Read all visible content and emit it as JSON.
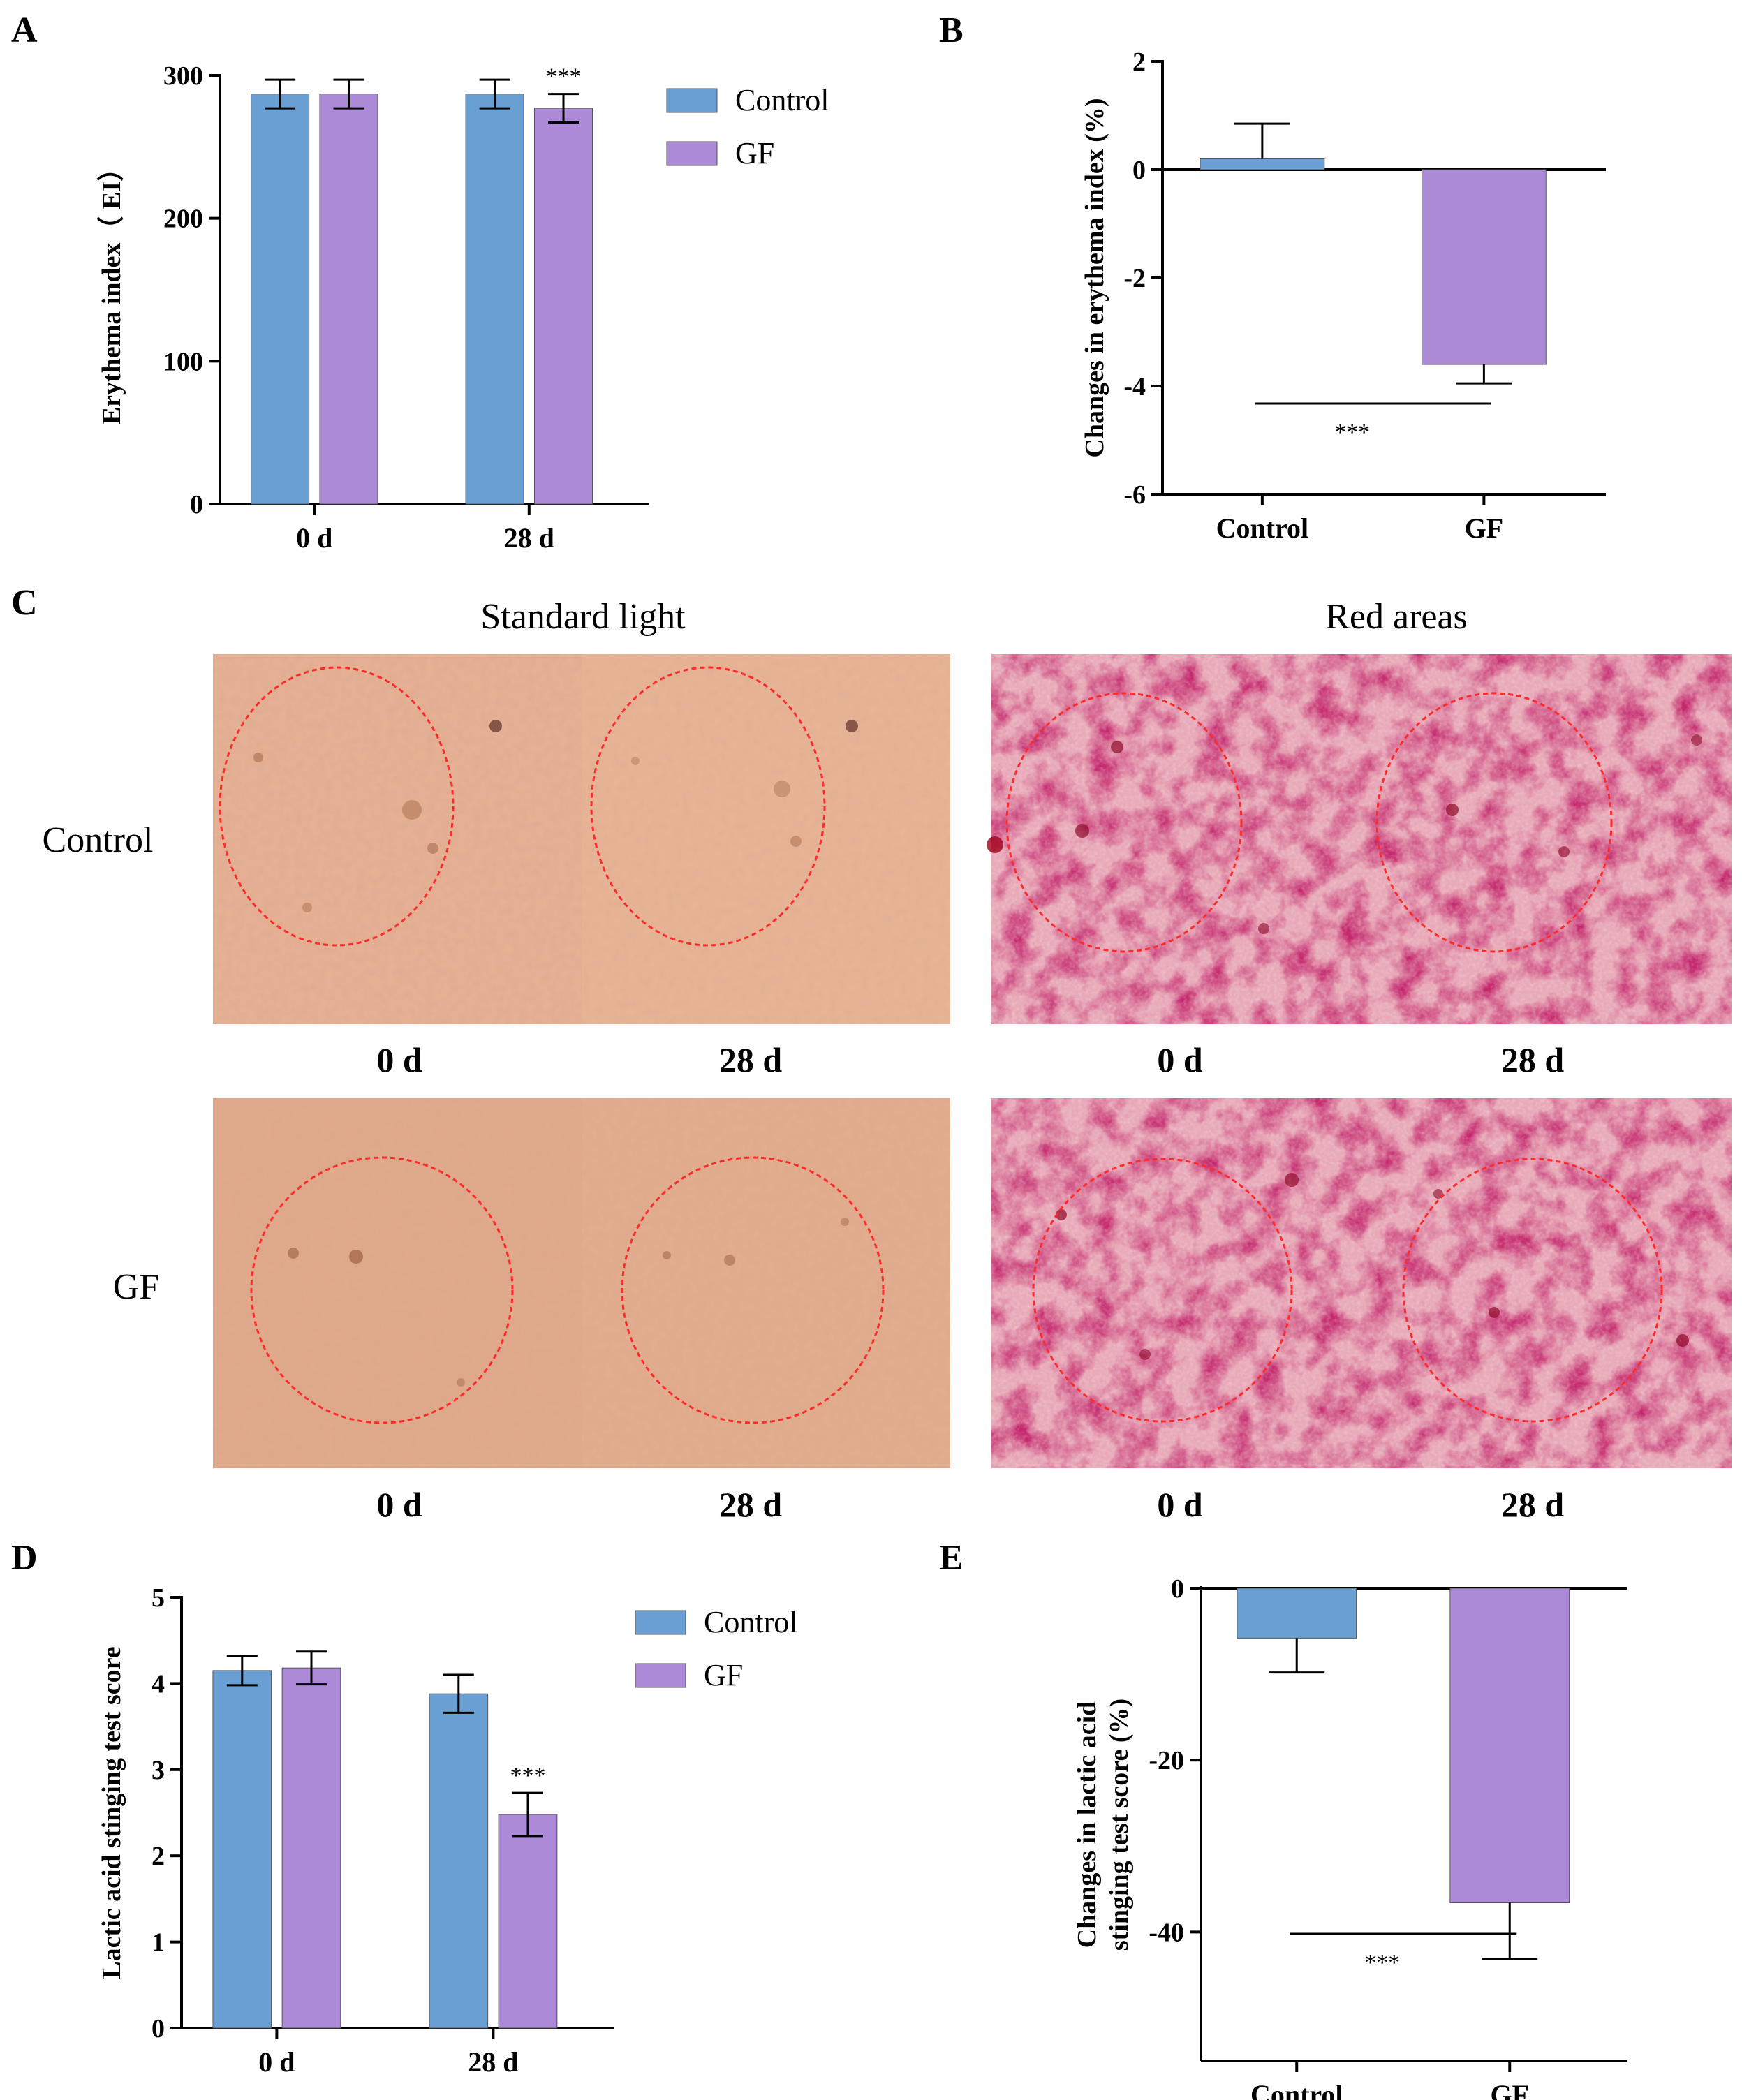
{
  "colors": {
    "control": "#6a9fd4",
    "gf": "#ad8ad8",
    "axis": "#000000",
    "circle": "#ff2a2a",
    "skin": "#e8b294",
    "red_map": "#d46d8a"
  },
  "panel_letters": {
    "a": "A",
    "b": "B",
    "c": "C",
    "d": "D",
    "e": "E"
  },
  "chart_data": [
    {
      "panel": "A",
      "type": "bar",
      "ylabel": "Erythema index（ EI）",
      "categories": [
        "0 d",
        "28 d"
      ],
      "ylim": [
        0,
        300
      ],
      "yticks": [
        "0",
        "100",
        "200",
        "300"
      ],
      "legend": [
        "Control",
        "GF"
      ],
      "legend_position": "top-right",
      "series": [
        {
          "name": "Control",
          "values": [
            287,
            287
          ],
          "errors": [
            10,
            10
          ]
        },
        {
          "name": "GF",
          "values": [
            287,
            277
          ],
          "errors": [
            10,
            10
          ]
        }
      ],
      "annotations": [
        {
          "text": "***",
          "series": "GF",
          "category": "28 d"
        }
      ]
    },
    {
      "panel": "B",
      "type": "bar",
      "ylabel": "Changes in erythema index (%)",
      "categories": [
        "Control",
        "GF"
      ],
      "ylim": [
        -6,
        2
      ],
      "yticks": [
        "2",
        "0",
        "-2",
        "-4",
        "-6"
      ],
      "values": [
        0.2,
        -3.6
      ],
      "errors": [
        0.65,
        0.35
      ],
      "annotations": [
        {
          "text": "***",
          "between": [
            "Control",
            "GF"
          ]
        }
      ]
    },
    {
      "panel": "D",
      "type": "bar",
      "ylabel": "Lactic acid stinging test score",
      "categories": [
        "0 d",
        "28 d"
      ],
      "ylim": [
        0,
        5
      ],
      "yticks": [
        "0",
        "1",
        "2",
        "3",
        "4",
        "5"
      ],
      "legend": [
        "Control",
        "GF"
      ],
      "legend_position": "top-right",
      "series": [
        {
          "name": "Control",
          "values": [
            4.15,
            3.88
          ],
          "errors": [
            0.17,
            0.22
          ]
        },
        {
          "name": "GF",
          "values": [
            4.18,
            2.48
          ],
          "errors": [
            0.19,
            0.25
          ]
        }
      ],
      "annotations": [
        {
          "text": "***",
          "series": "GF",
          "category": "28 d"
        }
      ]
    },
    {
      "panel": "E",
      "type": "bar",
      "ylabel_line1": "Changes in lactic acid",
      "ylabel_line2": "stinging test score (%)",
      "categories": [
        "Control",
        "GF"
      ],
      "ylim": [
        -55,
        0
      ],
      "yticks": [
        "0",
        "-20",
        "-40"
      ],
      "values": [
        -5.8,
        -36.6
      ],
      "errors": [
        4.0,
        6.5
      ],
      "annotations": [
        {
          "text": "***",
          "between": [
            "Control",
            "GF"
          ]
        }
      ]
    }
  ],
  "panel_c": {
    "col_headers": [
      "Standard light",
      "Red areas"
    ],
    "row_labels": [
      "Control",
      "GF"
    ],
    "time_labels": [
      "0 d",
      "28 d"
    ]
  }
}
